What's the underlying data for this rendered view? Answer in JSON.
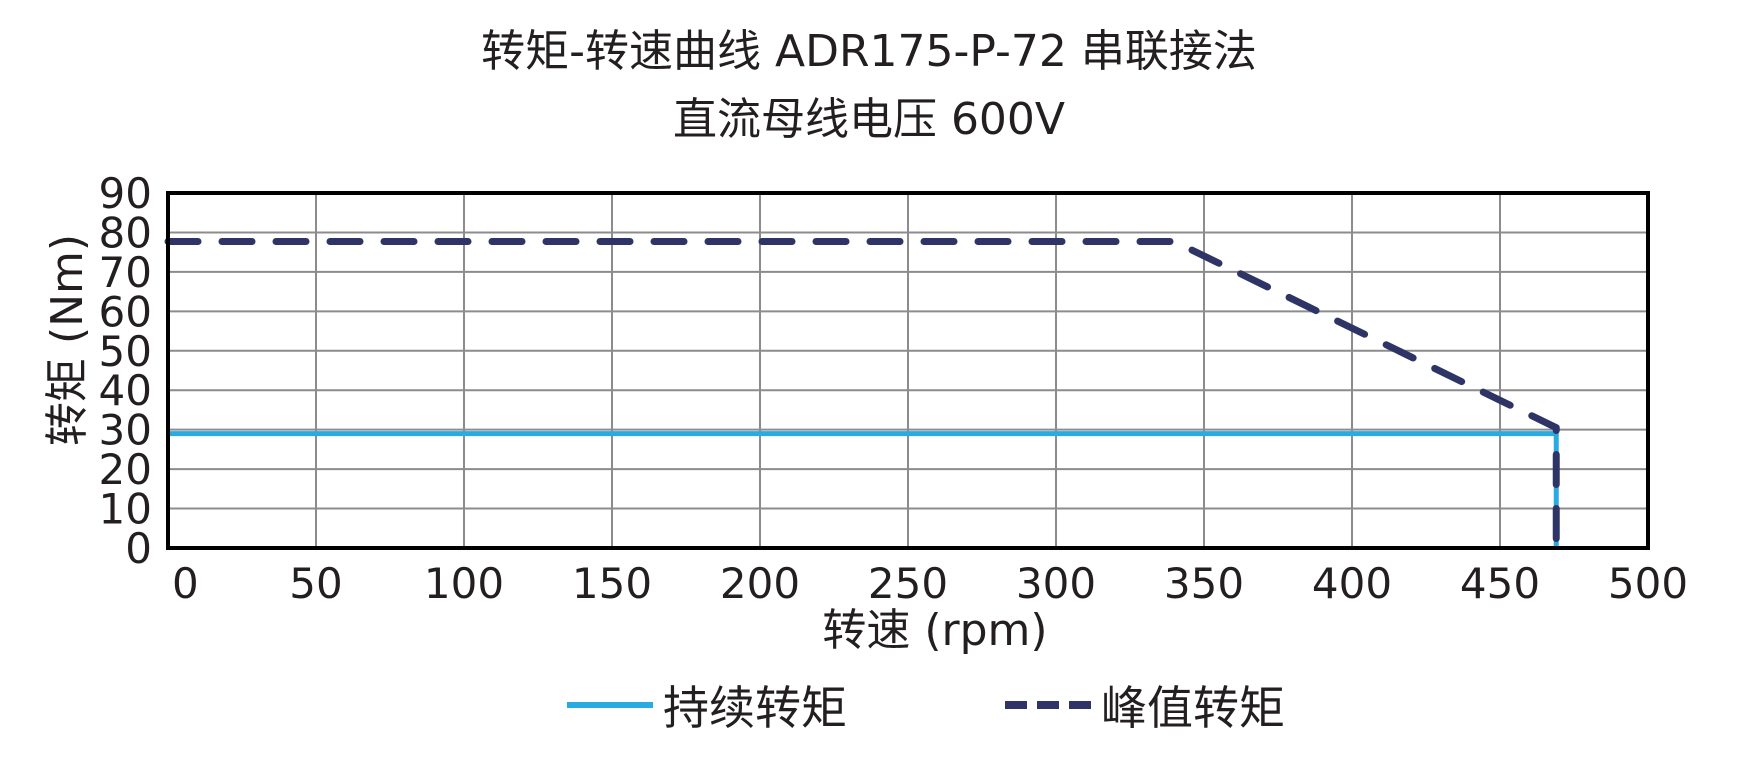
{
  "title": {
    "line1": "转矩-转速曲线 ADR175-P-72 串联接法",
    "line2": "直流母线电压 600V"
  },
  "colors": {
    "continuous": "#29aae1",
    "peak": "#2e3566",
    "grid": "#8c8c8c",
    "axis": "#000000"
  },
  "legend": {
    "continuous_label": "持续转矩",
    "peak_label": "峰值转矩"
  },
  "chart_data": {
    "type": "line",
    "title": "转矩-转速曲线 ADR175-P-72 串联接法 / 直流母线电压 600V",
    "xlabel": "转速 (rpm)",
    "ylabel": "转矩 (Nm)",
    "xlim": [
      0,
      500
    ],
    "ylim": [
      0,
      90
    ],
    "xticks": [
      0,
      50,
      100,
      150,
      200,
      250,
      300,
      350,
      400,
      450,
      500
    ],
    "yticks": [
      0,
      10,
      20,
      30,
      40,
      50,
      60,
      70,
      80,
      90
    ],
    "grid": true,
    "legend_position": "bottom",
    "series": [
      {
        "name": "持续转矩",
        "style": "solid",
        "color": "#29aae1",
        "points": [
          [
            0,
            29
          ],
          [
            469,
            29
          ],
          [
            469,
            0
          ]
        ]
      },
      {
        "name": "峰值转矩",
        "style": "dashed",
        "color": "#2e3566",
        "points": [
          [
            0,
            77.7
          ],
          [
            340,
            77.7
          ],
          [
            469,
            30.5
          ],
          [
            469,
            0
          ]
        ]
      }
    ]
  }
}
